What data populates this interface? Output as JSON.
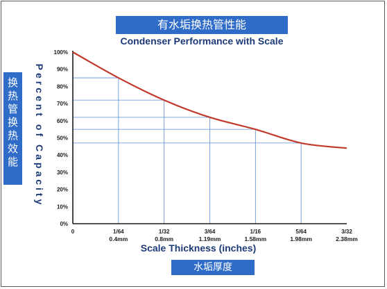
{
  "header": {
    "cn_title": "有水垢换热管性能"
  },
  "side": {
    "cn_ylabel": "换\n热\n管\n换\n热\n效\n能"
  },
  "footer": {
    "cn_xlabel": "水垢厚度"
  },
  "chart_data": {
    "type": "line",
    "title": "Condenser Performance with Scale",
    "xlabel": "Scale Thickness (inches)",
    "ylabel": "Percent of Capacity",
    "x_tick_labels": [
      "0",
      "1/64",
      "1/32",
      "3/64",
      "1/16",
      "5/64",
      "3/32"
    ],
    "x_mm_labels": [
      "",
      "0.4mm",
      "0.8mm",
      "1.19mm",
      "1.58mm",
      "1.98mm",
      "2.38mm"
    ],
    "x": [
      0,
      0.015625,
      0.03125,
      0.046875,
      0.0625,
      0.078125,
      0.09375
    ],
    "y_tick_labels": [
      "0%",
      "10%",
      "20%",
      "30%",
      "40%",
      "50%",
      "60%",
      "70%",
      "80%",
      "90%",
      "100%"
    ],
    "xlim": [
      0,
      0.09375
    ],
    "ylim": [
      0,
      100
    ],
    "series": [
      {
        "values": [
          100,
          85,
          72,
          62,
          55,
          47,
          44
        ],
        "color": "#c0392b"
      }
    ],
    "guides": {
      "color": "#5b8ed8"
    }
  }
}
